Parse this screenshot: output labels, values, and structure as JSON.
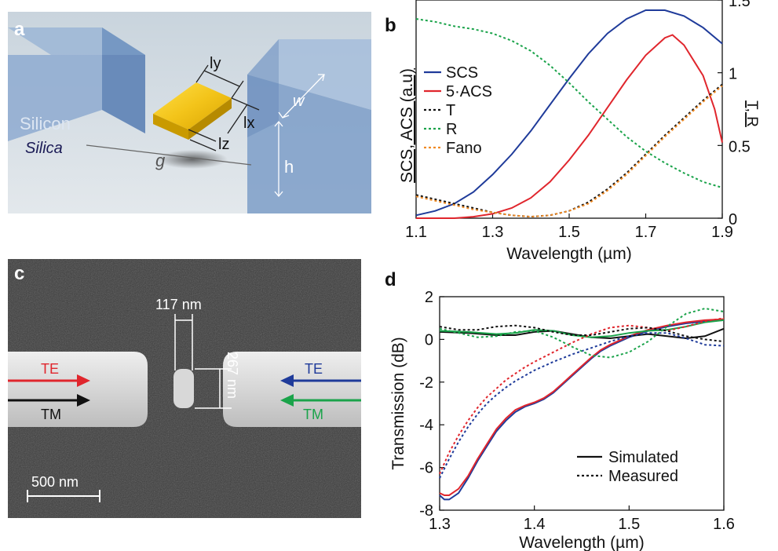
{
  "panels": {
    "a": "a",
    "b": "b",
    "c": "c",
    "d": "d"
  },
  "panel_a": {
    "silicon": "Silicon",
    "silica": "Silica",
    "ly": "ly",
    "lx": "lx",
    "lz": "lz",
    "w": "w",
    "h": "h",
    "g": "g"
  },
  "panel_c": {
    "gap_width": "117 nm",
    "gap_length": "267 nm",
    "te_left": "TE",
    "tm_left": "TM",
    "te_right": "TE",
    "tm_right": "TM",
    "scalebar": "500 nm"
  },
  "colors": {
    "blue": "#1f3b9a",
    "red": "#e0262d",
    "black": "#111111",
    "green": "#1aa34a",
    "orange": "#f08a24"
  },
  "chart_data": [
    {
      "type": "line",
      "xlabel": "Wavelength (µm)",
      "ylabel_left": "SCS, ACS (a.u)",
      "ylabel_right": "T, R",
      "xlim": [
        1.1,
        1.9
      ],
      "ylim_right": [
        0,
        1.5
      ],
      "x_ticks": [
        "1.1",
        "1.3",
        "1.5",
        "1.7",
        "1.9"
      ],
      "y_ticks_right": [
        "0",
        "0.5",
        "1",
        "1.5"
      ],
      "legend_position": "left",
      "series": [
        {
          "name": "SCS",
          "style": "solid",
          "color": "#1f3b9a",
          "x": [
            1.1,
            1.15,
            1.2,
            1.25,
            1.3,
            1.35,
            1.4,
            1.45,
            1.5,
            1.55,
            1.6,
            1.65,
            1.7,
            1.75,
            1.8,
            1.85,
            1.9
          ],
          "y": [
            0.02,
            0.05,
            0.1,
            0.18,
            0.3,
            0.44,
            0.6,
            0.78,
            0.96,
            1.13,
            1.27,
            1.37,
            1.43,
            1.43,
            1.39,
            1.31,
            1.2
          ]
        },
        {
          "name": "5·ACS",
          "style": "solid",
          "color": "#e0262d",
          "x": [
            1.1,
            1.2,
            1.25,
            1.3,
            1.35,
            1.4,
            1.45,
            1.5,
            1.55,
            1.6,
            1.65,
            1.7,
            1.75,
            1.77,
            1.8,
            1.85,
            1.88,
            1.9
          ],
          "y": [
            0.0,
            0.0,
            0.01,
            0.03,
            0.07,
            0.14,
            0.25,
            0.4,
            0.57,
            0.76,
            0.95,
            1.12,
            1.24,
            1.26,
            1.19,
            0.98,
            0.75,
            0.52
          ]
        },
        {
          "name": "T",
          "style": "dotted",
          "color": "#111111",
          "x": [
            1.1,
            1.15,
            1.2,
            1.25,
            1.3,
            1.35,
            1.4,
            1.45,
            1.5,
            1.55,
            1.6,
            1.65,
            1.7,
            1.75,
            1.8,
            1.85,
            1.9
          ],
          "y": [
            0.16,
            0.13,
            0.1,
            0.07,
            0.04,
            0.02,
            0.01,
            0.02,
            0.05,
            0.11,
            0.2,
            0.31,
            0.44,
            0.57,
            0.69,
            0.81,
            0.92
          ]
        },
        {
          "name": "R",
          "style": "dotted",
          "color": "#1aa34a",
          "x": [
            1.1,
            1.15,
            1.2,
            1.25,
            1.3,
            1.35,
            1.4,
            1.45,
            1.5,
            1.55,
            1.6,
            1.65,
            1.7,
            1.75,
            1.8,
            1.85,
            1.9
          ],
          "y": [
            1.37,
            1.35,
            1.32,
            1.3,
            1.27,
            1.22,
            1.15,
            1.05,
            0.93,
            0.8,
            0.68,
            0.56,
            0.46,
            0.38,
            0.31,
            0.25,
            0.21
          ]
        },
        {
          "name": "Fano",
          "style": "dotted",
          "color": "#f08a24",
          "x": [
            1.1,
            1.15,
            1.2,
            1.25,
            1.3,
            1.35,
            1.4,
            1.45,
            1.5,
            1.55,
            1.6,
            1.65,
            1.7,
            1.75,
            1.8,
            1.85,
            1.9
          ],
          "y": [
            0.15,
            0.12,
            0.09,
            0.06,
            0.04,
            0.02,
            0.01,
            0.02,
            0.05,
            0.1,
            0.19,
            0.3,
            0.43,
            0.56,
            0.68,
            0.8,
            0.91
          ]
        }
      ]
    },
    {
      "type": "line",
      "xlabel": "Wavelength (µm)",
      "ylabel": "Transmission (dB)",
      "xlim": [
        1.3,
        1.6
      ],
      "ylim": [
        -8,
        2
      ],
      "x_ticks": [
        "1.3",
        "1.4",
        "1.5",
        "1.6"
      ],
      "y_ticks": [
        "2",
        "0",
        "-2",
        "-4",
        "-6",
        "-8"
      ],
      "legend_position": "bottom-right",
      "legend": [
        {
          "label": "Simulated",
          "style": "solid"
        },
        {
          "label": "Measured",
          "style": "dotted"
        }
      ],
      "series": [
        {
          "color": "#1f3b9a",
          "style": "solid",
          "x": [
            1.3,
            1.305,
            1.31,
            1.32,
            1.33,
            1.34,
            1.35,
            1.36,
            1.37,
            1.38,
            1.39,
            1.4,
            1.41,
            1.42,
            1.43,
            1.44,
            1.45,
            1.46,
            1.47,
            1.48,
            1.5,
            1.52,
            1.54,
            1.56,
            1.58,
            1.6
          ],
          "y": [
            -7.3,
            -7.5,
            -7.5,
            -7.2,
            -6.5,
            -5.7,
            -5.0,
            -4.3,
            -3.8,
            -3.4,
            -3.15,
            -3.0,
            -2.8,
            -2.5,
            -2.1,
            -1.7,
            -1.3,
            -0.9,
            -0.55,
            -0.3,
            0.1,
            0.4,
            0.6,
            0.75,
            0.85,
            0.9
          ]
        },
        {
          "color": "#e0262d",
          "style": "solid",
          "x": [
            1.3,
            1.305,
            1.31,
            1.32,
            1.33,
            1.34,
            1.35,
            1.36,
            1.37,
            1.38,
            1.39,
            1.4,
            1.41,
            1.42,
            1.43,
            1.44,
            1.45,
            1.46,
            1.47,
            1.48,
            1.5,
            1.52,
            1.54,
            1.56,
            1.58,
            1.6
          ],
          "y": [
            -7.2,
            -7.3,
            -7.3,
            -7.0,
            -6.4,
            -5.6,
            -4.9,
            -4.2,
            -3.7,
            -3.3,
            -3.1,
            -2.95,
            -2.75,
            -2.45,
            -2.05,
            -1.65,
            -1.25,
            -0.85,
            -0.5,
            -0.25,
            0.15,
            0.45,
            0.65,
            0.8,
            0.9,
            0.95
          ]
        },
        {
          "color": "#111111",
          "style": "solid",
          "x": [
            1.3,
            1.33,
            1.36,
            1.38,
            1.4,
            1.42,
            1.44,
            1.46,
            1.48,
            1.5,
            1.52,
            1.54,
            1.56,
            1.58,
            1.6
          ],
          "y": [
            0.35,
            0.3,
            0.2,
            0.2,
            0.35,
            0.4,
            0.25,
            0.1,
            0.05,
            0.15,
            0.25,
            0.15,
            0.05,
            0.15,
            0.5
          ]
        },
        {
          "color": "#1aa34a",
          "style": "solid",
          "x": [
            1.3,
            1.33,
            1.36,
            1.38,
            1.4,
            1.42,
            1.44,
            1.46,
            1.48,
            1.5,
            1.52,
            1.54,
            1.56,
            1.58,
            1.6
          ],
          "y": [
            0.4,
            0.35,
            0.25,
            0.3,
            0.45,
            0.4,
            0.2,
            0.1,
            0.15,
            0.3,
            0.4,
            0.45,
            0.6,
            0.8,
            0.9
          ]
        },
        {
          "color": "#1f3b9a",
          "style": "dotted",
          "x": [
            1.3,
            1.31,
            1.32,
            1.33,
            1.34,
            1.35,
            1.36,
            1.37,
            1.38,
            1.39,
            1.4,
            1.42,
            1.44,
            1.46,
            1.48,
            1.5,
            1.52,
            1.54,
            1.56,
            1.58,
            1.6
          ],
          "y": [
            -6.5,
            -5.6,
            -4.8,
            -4.1,
            -3.5,
            -3.0,
            -2.6,
            -2.25,
            -1.95,
            -1.7,
            -1.45,
            -1.05,
            -0.7,
            -0.4,
            -0.1,
            0.15,
            0.3,
            0.3,
            0.05,
            -0.25,
            -0.3
          ]
        },
        {
          "color": "#e0262d",
          "style": "dotted",
          "x": [
            1.3,
            1.31,
            1.32,
            1.33,
            1.34,
            1.35,
            1.36,
            1.37,
            1.38,
            1.39,
            1.4,
            1.42,
            1.44,
            1.46,
            1.48,
            1.5,
            1.52,
            1.54,
            1.56,
            1.58,
            1.6
          ],
          "y": [
            -6.3,
            -5.3,
            -4.5,
            -3.8,
            -3.2,
            -2.7,
            -2.3,
            -1.9,
            -1.6,
            -1.3,
            -1.05,
            -0.6,
            -0.15,
            0.25,
            0.55,
            0.65,
            0.55,
            0.4,
            0.6,
            0.85,
            1.0
          ]
        },
        {
          "color": "#111111",
          "style": "dotted",
          "x": [
            1.3,
            1.32,
            1.34,
            1.36,
            1.38,
            1.4,
            1.42,
            1.44,
            1.46,
            1.48,
            1.5,
            1.52,
            1.54,
            1.56,
            1.58,
            1.6
          ],
          "y": [
            0.6,
            0.45,
            0.45,
            0.6,
            0.65,
            0.55,
            0.35,
            0.2,
            0.2,
            0.35,
            0.5,
            0.55,
            0.4,
            0.15,
            0.0,
            -0.1
          ]
        },
        {
          "color": "#1aa34a",
          "style": "dotted",
          "x": [
            1.3,
            1.32,
            1.34,
            1.36,
            1.38,
            1.4,
            1.42,
            1.44,
            1.46,
            1.48,
            1.5,
            1.52,
            1.54,
            1.56,
            1.58,
            1.6
          ],
          "y": [
            0.5,
            0.3,
            0.1,
            0.15,
            0.35,
            0.4,
            0.1,
            -0.35,
            -0.75,
            -0.85,
            -0.6,
            -0.1,
            0.6,
            1.2,
            1.45,
            1.3
          ]
        }
      ]
    }
  ]
}
